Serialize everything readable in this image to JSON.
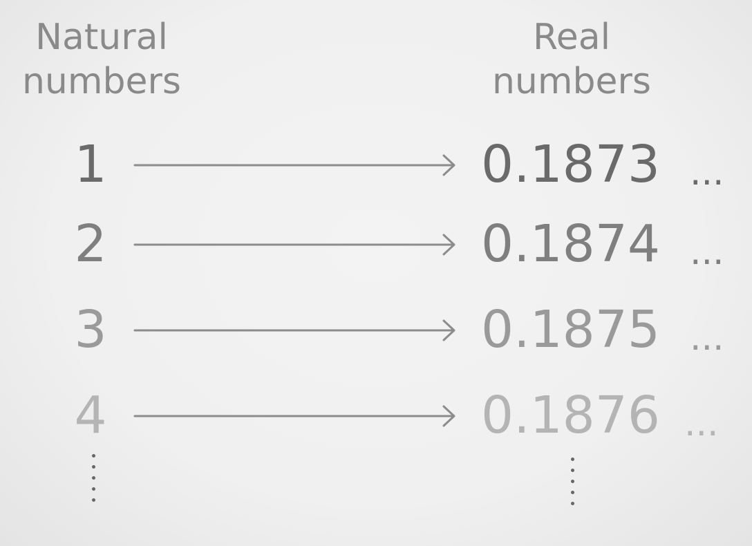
{
  "headers": {
    "left": [
      "Natural",
      "numbers"
    ],
    "right": [
      "Real",
      "numbers"
    ]
  },
  "rows": [
    {
      "natural": "1",
      "real": "0.1873",
      "ellipsis": "...",
      "color": "#6a6a6a"
    },
    {
      "natural": "2",
      "real": "0.1874",
      "ellipsis": "...",
      "color": "#7f7f7f"
    },
    {
      "natural": "3",
      "real": "0.1875",
      "ellipsis": "...",
      "color": "#9a9a9a"
    },
    {
      "natural": "4",
      "real": "0.1876",
      "ellipsis": "...",
      "color": "#b4b4b4"
    }
  ],
  "colors": {
    "background": "#f1f1f1",
    "header": "#8a8a8a",
    "arrow": "#8c8c8c",
    "vertical_dots": "#666666"
  }
}
